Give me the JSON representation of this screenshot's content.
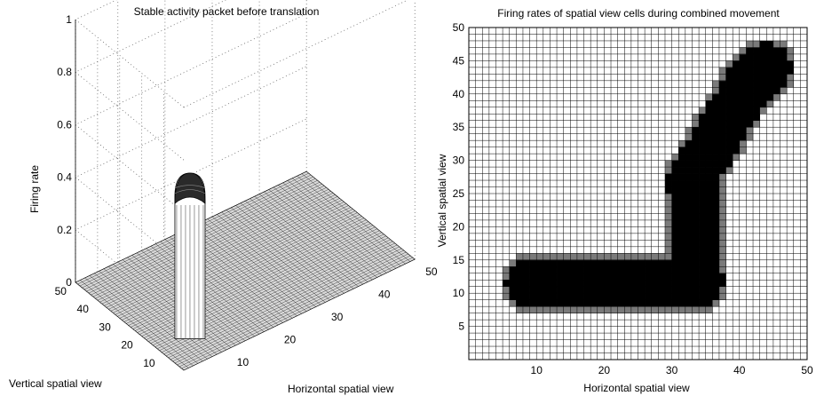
{
  "chart_data": [
    {
      "type": "surface",
      "title": "Stable activity packet before translation",
      "xlabel": "Horizontal spatial view",
      "ylabel": "Vertical spatial view",
      "zlabel": "Firing rate",
      "x_ticks": [
        "10",
        "20",
        "30",
        "40",
        "50"
      ],
      "y_ticks": [
        "10",
        "20",
        "30",
        "40",
        "50"
      ],
      "z_ticks": [
        "0",
        "0.2",
        "0.4",
        "0.6",
        "0.8",
        "1"
      ],
      "xlim": [
        1,
        50
      ],
      "ylim": [
        1,
        50
      ],
      "zlim": [
        0,
        1
      ],
      "grid": true,
      "packet": {
        "center_x": 7,
        "center_y": 11,
        "radius": 3,
        "peak": 0.63
      }
    },
    {
      "type": "heatmap",
      "title": "Firing rates of spatial view cells during combined movement",
      "xlabel": "Horizontal spatial view",
      "ylabel": "Vertical spatial view",
      "x_ticks": [
        "10",
        "20",
        "30",
        "40",
        "50"
      ],
      "y_ticks": [
        "5",
        "10",
        "15",
        "20",
        "25",
        "30",
        "35",
        "40",
        "45",
        "50"
      ],
      "xlim": [
        0,
        50
      ],
      "ylim": [
        0,
        50
      ],
      "grid": true,
      "colormap": "gray-inverted",
      "path": [
        [
          9,
          11.5
        ],
        [
          34,
          11.5
        ],
        [
          33,
          27
        ],
        [
          41,
          41
        ],
        [
          44,
          44
        ]
      ],
      "path_half_width": 3.6
    }
  ]
}
